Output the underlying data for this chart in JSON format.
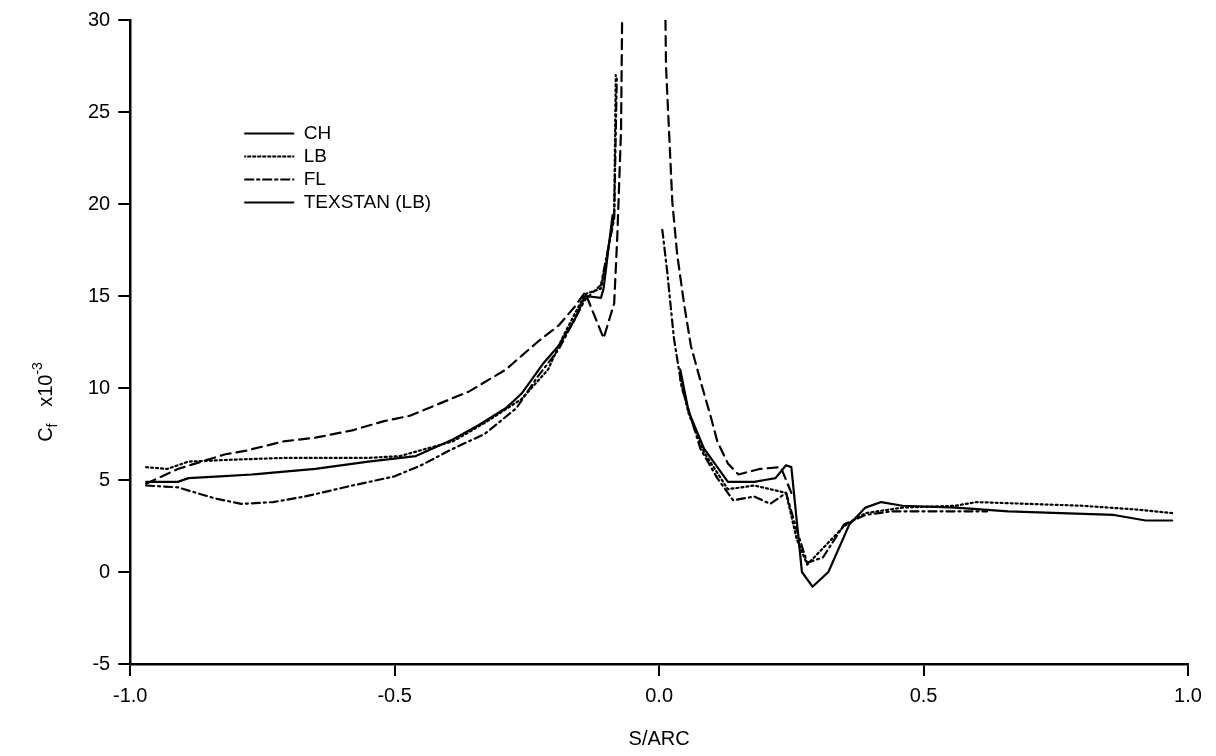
{
  "chart_data": {
    "type": "line",
    "xlabel": "S/ARC",
    "ylabel": "C$_{f}$   x10$^{-3}$",
    "xlim": [
      -1.0,
      1.0
    ],
    "ylim": [
      -5,
      30
    ],
    "xticks": [
      {
        "value": -1.0,
        "label": "-1.0"
      },
      {
        "value": -0.5,
        "label": "-0.5"
      },
      {
        "value": 0,
        "label": "0.0"
      },
      {
        "value": 0.5,
        "label": "0.5"
      },
      {
        "value": 1.0,
        "label": "1.0"
      }
    ],
    "yticks": [
      -5,
      0,
      5,
      10,
      15,
      20,
      25,
      30
    ],
    "grid": false,
    "legend": "top left",
    "series": [
      {
        "name": "CH",
        "color": "#000000",
        "line_style": "solid",
        "x": [
          -0.97,
          -0.91,
          -0.89,
          -0.83,
          -0.77,
          -0.73,
          -0.65,
          -0.55,
          -0.46,
          -0.39,
          -0.34,
          -0.29,
          -0.26,
          -0.22,
          -0.19,
          -0.16,
          -0.14,
          -0.11,
          -0.105,
          -0.088,
          null,
          0.04,
          0.056,
          0.085,
          0.13,
          0.18,
          0.22,
          0.24,
          0.25,
          0.27,
          0.29,
          0.32,
          0.36,
          0.39,
          0.42,
          0.46,
          0.56,
          0.66,
          0.76,
          0.86,
          0.92,
          0.97
        ],
        "values": [
          4.9,
          4.9,
          5.1,
          5.2,
          5.3,
          5.4,
          5.6,
          6.0,
          6.3,
          7.2,
          8.0,
          8.9,
          9.7,
          11.3,
          12.3,
          13.7,
          15.0,
          14.9,
          15.4,
          19.4,
          null,
          11.0,
          8.7,
          6.7,
          4.9,
          4.9,
          5.1,
          5.8,
          5.7,
          0.0,
          -0.8,
          0.0,
          2.6,
          3.5,
          3.8,
          3.6,
          3.5,
          3.3,
          3.2,
          3.1,
          2.8,
          2.8
        ]
      },
      {
        "name": "LB",
        "color": "#000000",
        "line_style": "dotted",
        "x": [
          -0.97,
          -0.93,
          -0.89,
          -0.81,
          -0.71,
          -0.62,
          -0.55,
          -0.49,
          -0.39,
          -0.33,
          -0.26,
          -0.21,
          -0.18,
          -0.14,
          -0.11,
          -0.085,
          -0.082,
          null,
          0.04,
          0.056,
          0.085,
          0.13,
          0.18,
          0.24,
          0.26,
          0.28,
          0.31,
          0.35,
          0.39,
          0.46,
          0.56,
          0.6,
          0.7,
          0.8,
          0.9,
          0.97
        ],
        "values": [
          5.7,
          5.6,
          6.0,
          6.1,
          6.2,
          6.2,
          6.2,
          6.3,
          7.1,
          8.1,
          9.4,
          11.0,
          12.9,
          15.1,
          15.4,
          19.4,
          27.0,
          null,
          10.5,
          8.6,
          6.5,
          4.5,
          4.7,
          4.3,
          1.8,
          0.4,
          1.3,
          2.5,
          3.2,
          3.5,
          3.6,
          3.8,
          3.7,
          3.6,
          3.4,
          3.2
        ]
      },
      {
        "name": "FL",
        "color": "#000000",
        "line_style": "dashdot",
        "x": [
          -0.97,
          -0.91,
          -0.84,
          -0.79,
          -0.73,
          -0.67,
          -0.58,
          -0.5,
          -0.45,
          -0.39,
          -0.33,
          -0.27,
          -0.23,
          -0.19,
          -0.14,
          -0.11,
          -0.085,
          -0.08,
          null,
          0.006,
          0.015,
          0.028,
          0.043,
          0.078,
          0.11,
          0.14,
          0.18,
          0.21,
          0.24,
          0.26,
          0.28,
          0.31,
          0.35,
          0.39,
          0.44,
          0.56,
          0.62
        ],
        "values": [
          4.7,
          4.6,
          4.0,
          3.7,
          3.8,
          4.1,
          4.7,
          5.2,
          5.8,
          6.7,
          7.5,
          8.9,
          10.6,
          12.1,
          14.8,
          15.6,
          19.2,
          27.0,
          null,
          18.6,
          16.4,
          12.7,
          10.0,
          6.7,
          5.1,
          3.9,
          4.1,
          3.7,
          4.3,
          2.3,
          0.5,
          0.8,
          2.6,
          3.1,
          3.3,
          3.3,
          3.3
        ]
      },
      {
        "name": "TEXSTAN (LB)",
        "color": "#000000",
        "line_style": "dashed",
        "x": [
          -0.97,
          -0.91,
          -0.82,
          -0.78,
          -0.71,
          -0.65,
          -0.58,
          -0.52,
          -0.47,
          -0.42,
          -0.36,
          -0.29,
          -0.23,
          -0.19,
          -0.16,
          -0.14,
          -0.105,
          -0.085,
          -0.079,
          -0.072,
          -0.07,
          null,
          0.012,
          0.013,
          0.019,
          0.025,
          0.034,
          0.047,
          0.06,
          0.079,
          0.098,
          0.11,
          0.13,
          0.15,
          0.19,
          0.23,
          0.25
        ],
        "values": [
          4.8,
          5.6,
          6.4,
          6.6,
          7.1,
          7.3,
          7.7,
          8.2,
          8.5,
          9.1,
          9.8,
          11.0,
          12.5,
          13.4,
          14.4,
          15.2,
          12.7,
          14.6,
          18.3,
          24.0,
          30.0,
          null,
          30.0,
          27.5,
          23.8,
          20.1,
          17.3,
          14.6,
          12.3,
          10.3,
          8.4,
          7.1,
          5.9,
          5.3,
          5.6,
          5.7,
          4.3
        ]
      }
    ]
  }
}
